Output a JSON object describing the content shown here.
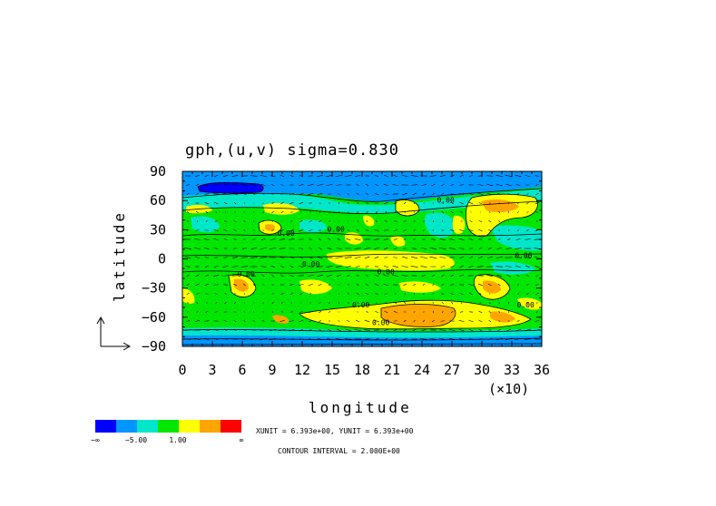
{
  "chart_data": {
    "type": "heatmap",
    "title": "gph,(u,v)  sigma=0.830",
    "xlabel": "longitude",
    "ylabel": "latitude",
    "x_multiplier": "(×10)",
    "xlim": [
      0,
      36
    ],
    "ylim": [
      -90,
      90
    ],
    "x_ticks": [
      "0",
      "3",
      "6",
      "9",
      "12",
      "15",
      "18",
      "21",
      "24",
      "27",
      "30",
      "33",
      "36"
    ],
    "y_ticks": [
      "90",
      "60",
      "30",
      "0",
      "−30",
      "−60",
      "−90"
    ],
    "grid": false,
    "colorbar": {
      "colors": [
        "#0000ff",
        "#0096ff",
        "#00e6c8",
        "#00e600",
        "#ffff00",
        "#ffa500",
        "#ff0000"
      ],
      "labels": [
        "−∞",
        "−5.00",
        "1.00",
        "∞"
      ]
    },
    "contour_labels": [
      {
        "x": 25.5,
        "y": 58,
        "text": "0.00"
      },
      {
        "x": 9.5,
        "y": 24,
        "text": "0.00"
      },
      {
        "x": 14.5,
        "y": 28,
        "text": "0.00"
      },
      {
        "x": 12,
        "y": -8,
        "text": "0.00"
      },
      {
        "x": 19.5,
        "y": -16,
        "text": "0.00"
      },
      {
        "x": 5.5,
        "y": -18,
        "text": "0.00"
      },
      {
        "x": 17,
        "y": -50,
        "text": "0.00"
      },
      {
        "x": 19,
        "y": -68,
        "text": "0.00"
      },
      {
        "x": 33.5,
        "y": -50,
        "text": "0.00"
      },
      {
        "x": 33.3,
        "y": 1,
        "text": "0.00"
      }
    ],
    "units_text": "XUNIT = 6.393e+00, YUNIT = 6.393e+00",
    "contour_interval_text": "CONTOUR INTERVAL = 2.000E+00"
  }
}
